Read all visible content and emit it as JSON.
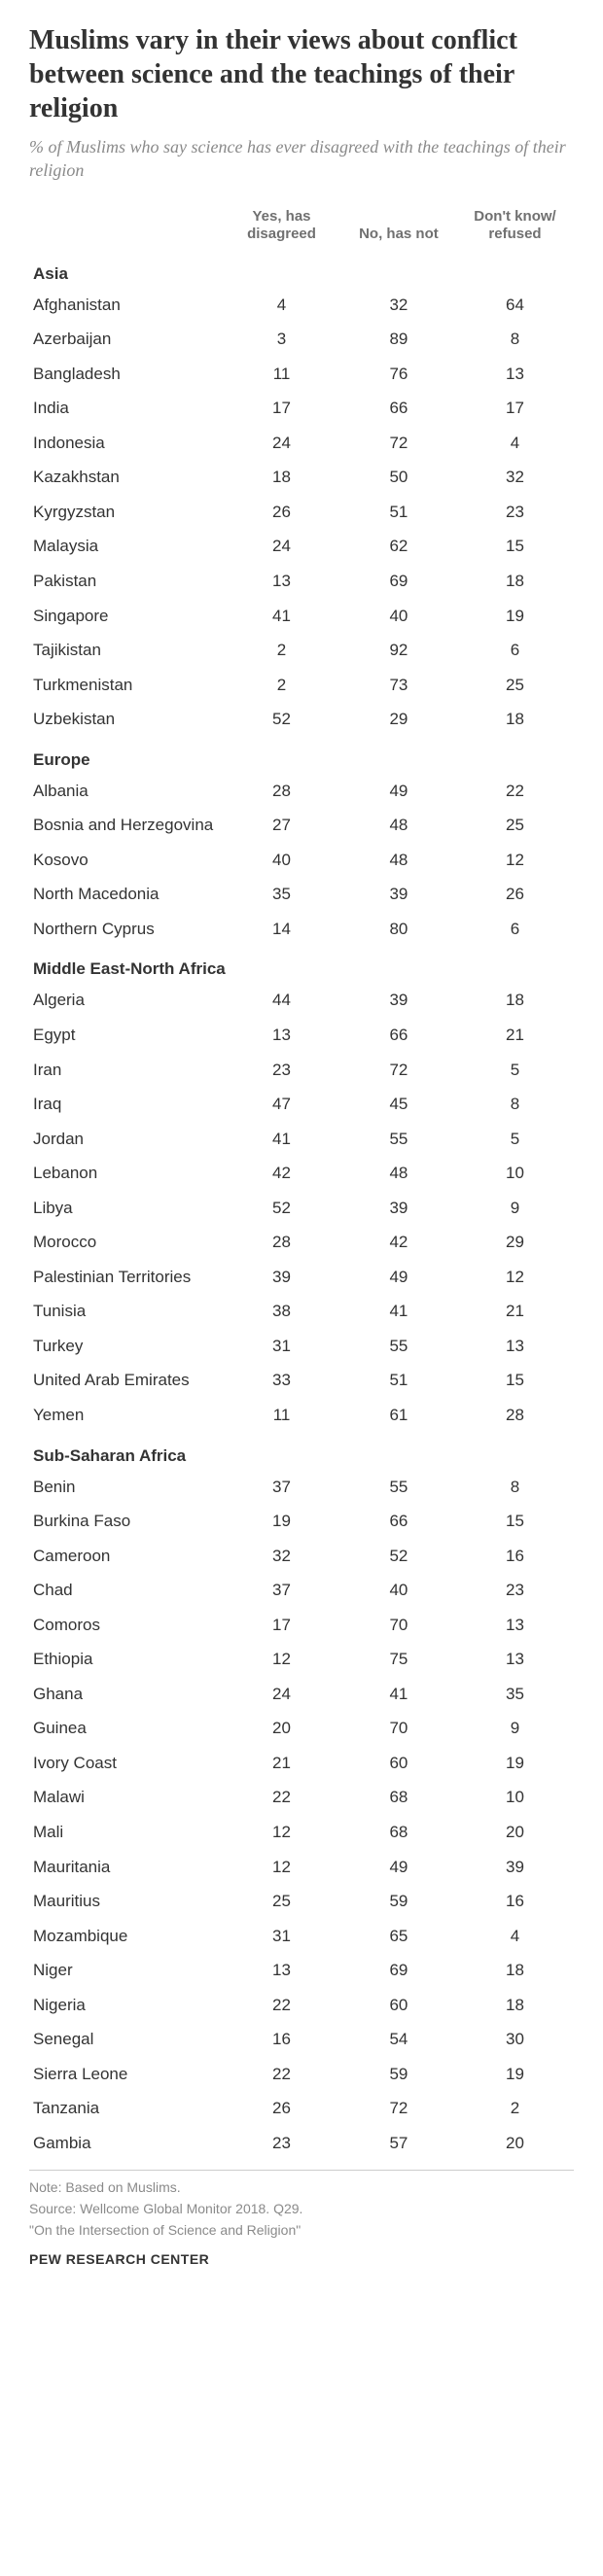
{
  "title": "Muslims vary in their views about conflict between science and the teachings of their religion",
  "subtitle": "% of Muslims who say science has ever disagreed with the teachings of their religion",
  "columns": {
    "c1": "Yes, has disagreed",
    "c2": "No, has not",
    "c3": "Don't know/ refused"
  },
  "regions": [
    {
      "name": "Asia",
      "rows": [
        {
          "label": "Afghanistan",
          "c1": 4,
          "c2": 32,
          "c3": 64
        },
        {
          "label": "Azerbaijan",
          "c1": 3,
          "c2": 89,
          "c3": 8
        },
        {
          "label": "Bangladesh",
          "c1": 11,
          "c2": 76,
          "c3": 13
        },
        {
          "label": "India",
          "c1": 17,
          "c2": 66,
          "c3": 17
        },
        {
          "label": "Indonesia",
          "c1": 24,
          "c2": 72,
          "c3": 4
        },
        {
          "label": "Kazakhstan",
          "c1": 18,
          "c2": 50,
          "c3": 32
        },
        {
          "label": "Kyrgyzstan",
          "c1": 26,
          "c2": 51,
          "c3": 23
        },
        {
          "label": "Malaysia",
          "c1": 24,
          "c2": 62,
          "c3": 15
        },
        {
          "label": "Pakistan",
          "c1": 13,
          "c2": 69,
          "c3": 18
        },
        {
          "label": "Singapore",
          "c1": 41,
          "c2": 40,
          "c3": 19
        },
        {
          "label": "Tajikistan",
          "c1": 2,
          "c2": 92,
          "c3": 6
        },
        {
          "label": "Turkmenistan",
          "c1": 2,
          "c2": 73,
          "c3": 25
        },
        {
          "label": "Uzbekistan",
          "c1": 52,
          "c2": 29,
          "c3": 18
        }
      ]
    },
    {
      "name": "Europe",
      "rows": [
        {
          "label": "Albania",
          "c1": 28,
          "c2": 49,
          "c3": 22
        },
        {
          "label": "Bosnia and Herzegovina",
          "c1": 27,
          "c2": 48,
          "c3": 25
        },
        {
          "label": "Kosovo",
          "c1": 40,
          "c2": 48,
          "c3": 12
        },
        {
          "label": "North Macedonia",
          "c1": 35,
          "c2": 39,
          "c3": 26
        },
        {
          "label": "Northern Cyprus",
          "c1": 14,
          "c2": 80,
          "c3": 6
        }
      ]
    },
    {
      "name": "Middle East-North Africa",
      "rows": [
        {
          "label": "Algeria",
          "c1": 44,
          "c2": 39,
          "c3": 18
        },
        {
          "label": "Egypt",
          "c1": 13,
          "c2": 66,
          "c3": 21
        },
        {
          "label": "Iran",
          "c1": 23,
          "c2": 72,
          "c3": 5
        },
        {
          "label": "Iraq",
          "c1": 47,
          "c2": 45,
          "c3": 8
        },
        {
          "label": "Jordan",
          "c1": 41,
          "c2": 55,
          "c3": 5
        },
        {
          "label": "Lebanon",
          "c1": 42,
          "c2": 48,
          "c3": 10
        },
        {
          "label": "Libya",
          "c1": 52,
          "c2": 39,
          "c3": 9
        },
        {
          "label": "Morocco",
          "c1": 28,
          "c2": 42,
          "c3": 29
        },
        {
          "label": "Palestinian Territories",
          "c1": 39,
          "c2": 49,
          "c3": 12
        },
        {
          "label": "Tunisia",
          "c1": 38,
          "c2": 41,
          "c3": 21
        },
        {
          "label": "Turkey",
          "c1": 31,
          "c2": 55,
          "c3": 13
        },
        {
          "label": "United Arab Emirates",
          "c1": 33,
          "c2": 51,
          "c3": 15
        },
        {
          "label": "Yemen",
          "c1": 11,
          "c2": 61,
          "c3": 28
        }
      ]
    },
    {
      "name": "Sub-Saharan Africa",
      "rows": [
        {
          "label": "Benin",
          "c1": 37,
          "c2": 55,
          "c3": 8
        },
        {
          "label": "Burkina Faso",
          "c1": 19,
          "c2": 66,
          "c3": 15
        },
        {
          "label": "Cameroon",
          "c1": 32,
          "c2": 52,
          "c3": 16
        },
        {
          "label": "Chad",
          "c1": 37,
          "c2": 40,
          "c3": 23
        },
        {
          "label": "Comoros",
          "c1": 17,
          "c2": 70,
          "c3": 13
        },
        {
          "label": "Ethiopia",
          "c1": 12,
          "c2": 75,
          "c3": 13
        },
        {
          "label": "Ghana",
          "c1": 24,
          "c2": 41,
          "c3": 35
        },
        {
          "label": "Guinea",
          "c1": 20,
          "c2": 70,
          "c3": 9
        },
        {
          "label": "Ivory Coast",
          "c1": 21,
          "c2": 60,
          "c3": 19
        },
        {
          "label": "Malawi",
          "c1": 22,
          "c2": 68,
          "c3": 10
        },
        {
          "label": "Mali",
          "c1": 12,
          "c2": 68,
          "c3": 20
        },
        {
          "label": "Mauritania",
          "c1": 12,
          "c2": 49,
          "c3": 39
        },
        {
          "label": "Mauritius",
          "c1": 25,
          "c2": 59,
          "c3": 16
        },
        {
          "label": "Mozambique",
          "c1": 31,
          "c2": 65,
          "c3": 4
        },
        {
          "label": "Niger",
          "c1": 13,
          "c2": 69,
          "c3": 18
        },
        {
          "label": "Nigeria",
          "c1": 22,
          "c2": 60,
          "c3": 18
        },
        {
          "label": "Senegal",
          "c1": 16,
          "c2": 54,
          "c3": 30
        },
        {
          "label": "Sierra Leone",
          "c1": 22,
          "c2": 59,
          "c3": 19
        },
        {
          "label": "Tanzania",
          "c1": 26,
          "c2": 72,
          "c3": 2
        },
        {
          "label": "Gambia",
          "c1": 23,
          "c2": 57,
          "c3": 20
        }
      ]
    }
  ],
  "note_line1": "Note: Based on Muslims.",
  "note_line2": "Source: Wellcome Global Monitor 2018. Q29.",
  "note_line3": "\"On the Intersection of Science and Religion\"",
  "org": "PEW RESEARCH CENTER",
  "style": {
    "background_color": "#ffffff",
    "title_color": "#333333",
    "subtitle_color": "#8a8a8a",
    "header_color": "#707070",
    "body_text_color": "#333333",
    "note_color": "#8a8a8a",
    "divider_color": "#cccccc",
    "title_fontsize": 28,
    "subtitle_fontsize": 18,
    "header_fontsize": 15,
    "body_fontsize": 17,
    "note_fontsize": 14
  }
}
